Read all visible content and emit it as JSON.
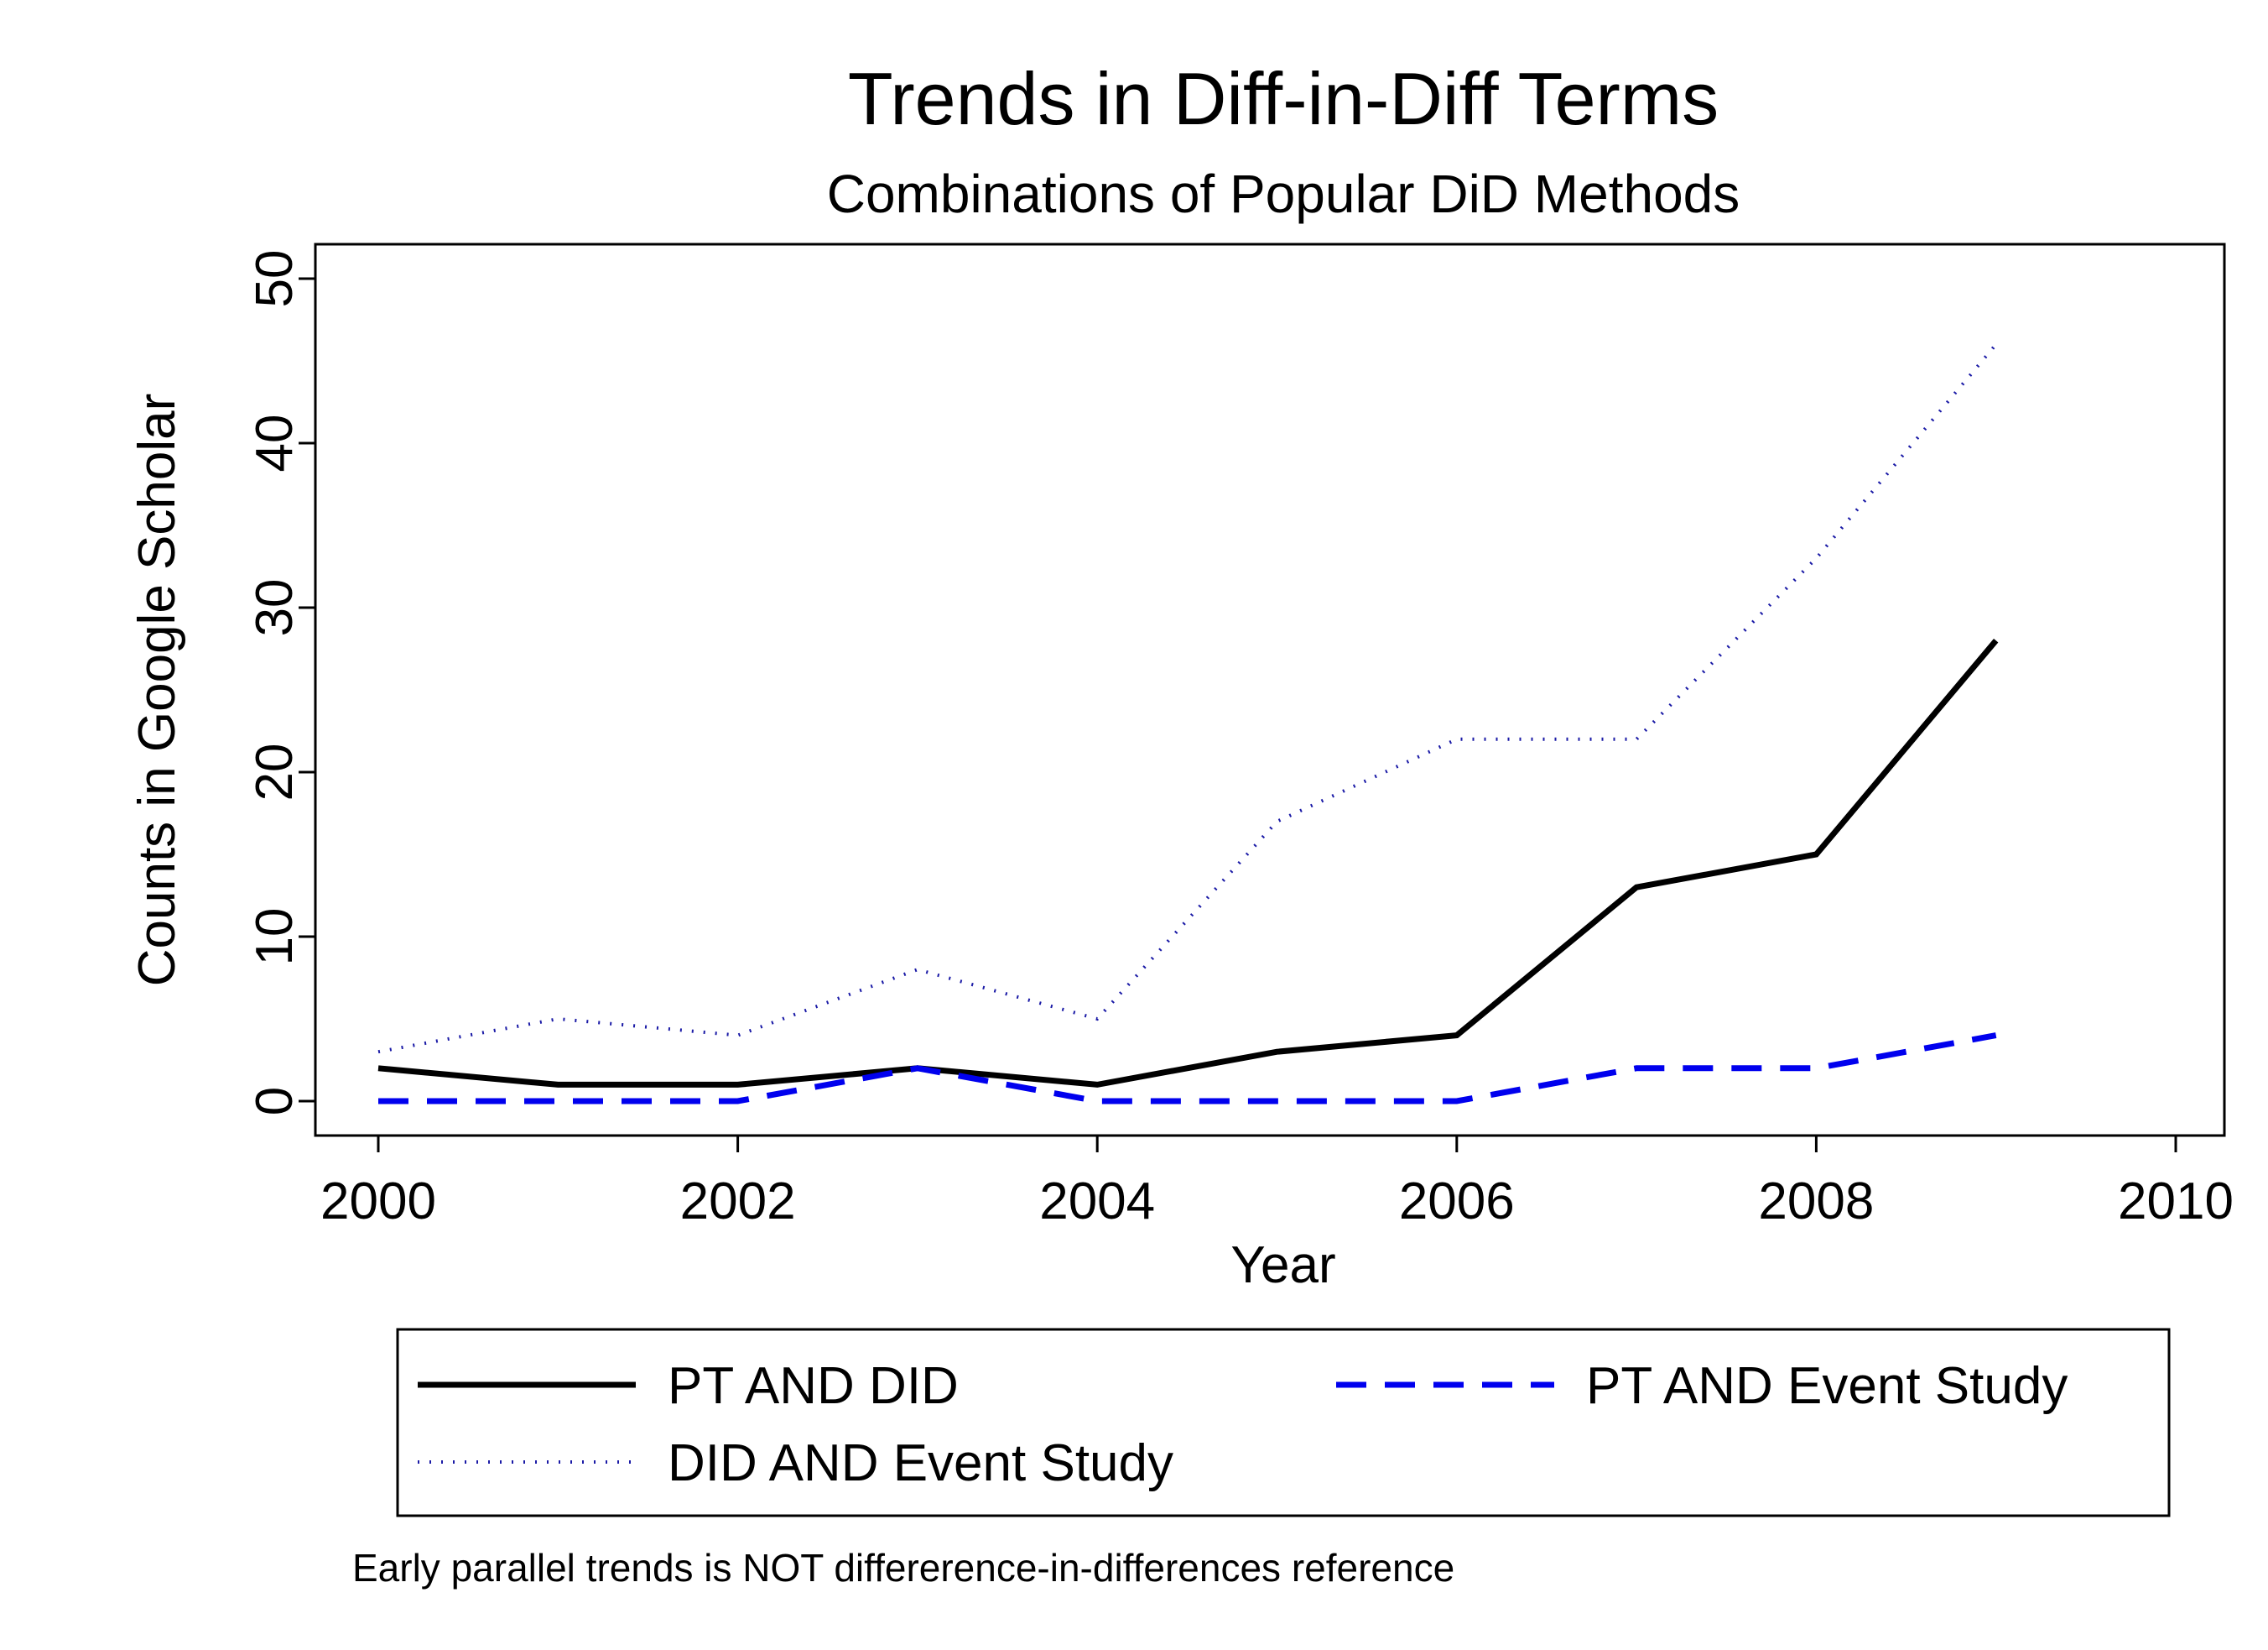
{
  "chart_data": {
    "type": "line",
    "title": "Trends in Diff-in-Diff Terms",
    "subtitle": "Combinations of Popular DiD Methods",
    "xlabel": "Year",
    "ylabel": "Counts in Google Scholar",
    "x": [
      2000,
      2001,
      2002,
      2003,
      2004,
      2005,
      2006,
      2007,
      2008,
      2009
    ],
    "xlim": [
      2000,
      2010
    ],
    "ylim": [
      0,
      50
    ],
    "xticks": [
      2000,
      2002,
      2004,
      2006,
      2008,
      2010
    ],
    "yticks": [
      0,
      10,
      20,
      30,
      40,
      50
    ],
    "xtick_labels": [
      "2000",
      "2002",
      "2004",
      "2006",
      "2008",
      "2010"
    ],
    "ytick_labels": [
      "0",
      "10",
      "20",
      "30",
      "40",
      "50"
    ],
    "grid": false,
    "legend_position": "bottom",
    "series": [
      {
        "name": "PT AND DID",
        "values": [
          2,
          1,
          1,
          2,
          1,
          3,
          4,
          13,
          15,
          28
        ],
        "color": "#000000",
        "style": "solid"
      },
      {
        "name": "PT AND Event Study",
        "values": [
          0,
          0,
          0,
          2,
          0,
          0,
          0,
          2,
          2,
          4
        ],
        "color": "#0000ee",
        "style": "dashed"
      },
      {
        "name": "DID AND Event Study",
        "values": [
          3,
          5,
          4,
          8,
          5,
          17,
          22,
          22,
          33,
          46
        ],
        "color": "#1a1aa6",
        "style": "dotted"
      }
    ],
    "note": "Early parallel trends is NOT differerence-in-differences reference"
  }
}
